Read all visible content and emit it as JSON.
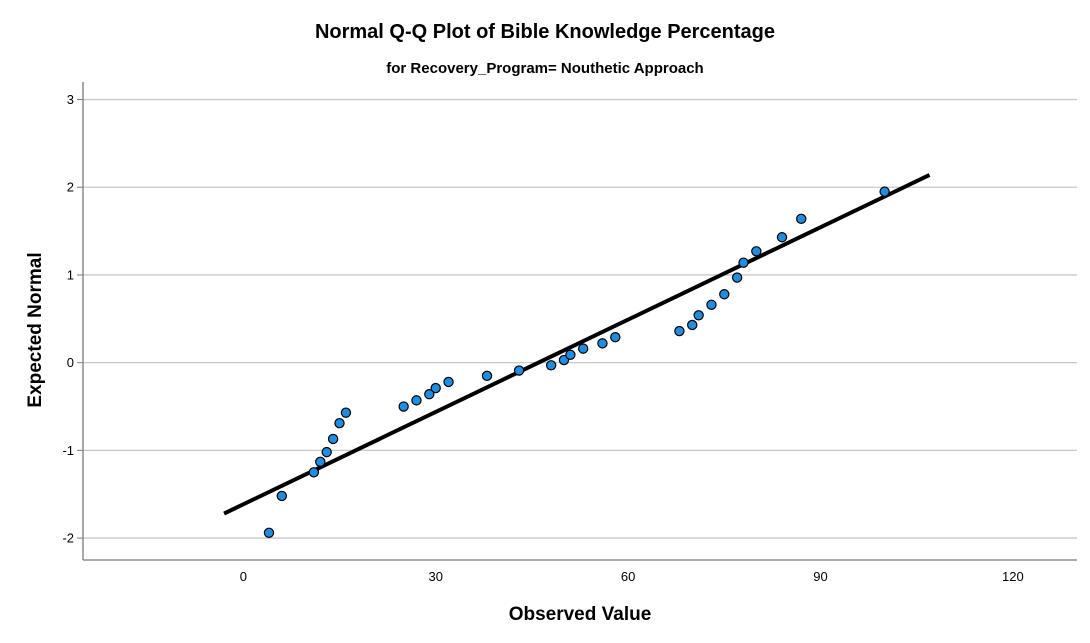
{
  "chart_data": {
    "type": "scatter",
    "title": "Normal Q-Q Plot of Bible Knowledge Percentage",
    "subtitle": "for Recovery_Program= Nouthetic Approach",
    "xlabel": "Observed Value",
    "ylabel": "Expected Normal",
    "xlim": [
      -25,
      130
    ],
    "ylim": [
      -2.25,
      3.2
    ],
    "xticks": [
      0,
      30,
      60,
      90,
      120
    ],
    "yticks": [
      -2,
      -1,
      0,
      1,
      2,
      3
    ],
    "grid": "horizontal",
    "points": [
      {
        "x": 4,
        "y": -1.94
      },
      {
        "x": 6,
        "y": -1.52
      },
      {
        "x": 11,
        "y": -1.25
      },
      {
        "x": 12,
        "y": -1.13
      },
      {
        "x": 13,
        "y": -1.02
      },
      {
        "x": 14,
        "y": -0.87
      },
      {
        "x": 15,
        "y": -0.69
      },
      {
        "x": 16,
        "y": -0.57
      },
      {
        "x": 25,
        "y": -0.5
      },
      {
        "x": 27,
        "y": -0.43
      },
      {
        "x": 29,
        "y": -0.36
      },
      {
        "x": 30,
        "y": -0.29
      },
      {
        "x": 32,
        "y": -0.22
      },
      {
        "x": 38,
        "y": -0.15
      },
      {
        "x": 43,
        "y": -0.09
      },
      {
        "x": 48,
        "y": -0.03
      },
      {
        "x": 50,
        "y": 0.03
      },
      {
        "x": 51,
        "y": 0.09
      },
      {
        "x": 53,
        "y": 0.16
      },
      {
        "x": 56,
        "y": 0.22
      },
      {
        "x": 58,
        "y": 0.29
      },
      {
        "x": 68,
        "y": 0.36
      },
      {
        "x": 70,
        "y": 0.43
      },
      {
        "x": 71,
        "y": 0.54
      },
      {
        "x": 73,
        "y": 0.66
      },
      {
        "x": 75,
        "y": 0.78
      },
      {
        "x": 77,
        "y": 0.97
      },
      {
        "x": 78,
        "y": 1.14
      },
      {
        "x": 80,
        "y": 1.27
      },
      {
        "x": 84,
        "y": 1.43
      },
      {
        "x": 87,
        "y": 1.64
      },
      {
        "x": 100,
        "y": 1.95
      }
    ],
    "reference_line": {
      "x1": -3,
      "y1": -1.72,
      "x2": 107,
      "y2": 2.14
    }
  },
  "colors": {
    "point_fill": "#1f8ee0",
    "point_stroke": "#000000",
    "line": "#000000",
    "grid": "#c8c8c8",
    "axis": "#7a7a7a"
  }
}
